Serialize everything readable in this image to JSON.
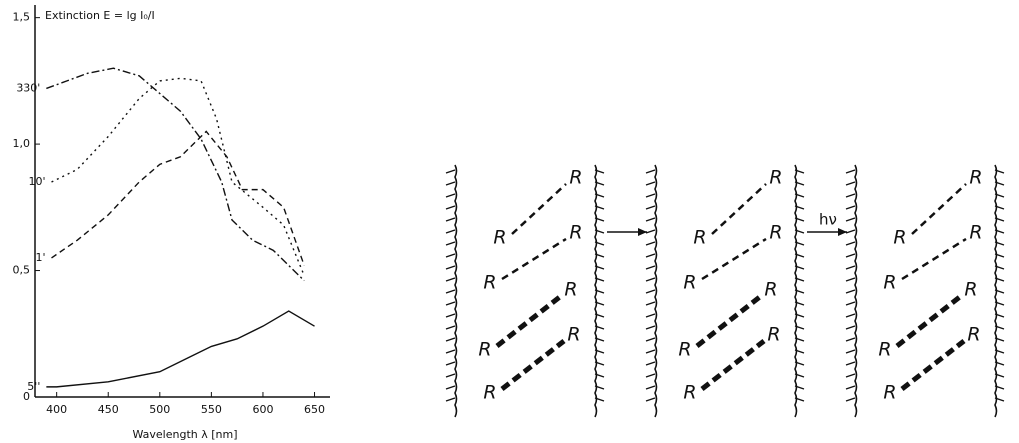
{
  "chart_data": {
    "type": "line",
    "ylabel": "Extinction E = lg I₀/I",
    "xlabel": "Wavelength λ [nm]",
    "xlim": [
      379,
      665
    ],
    "xticks": [
      400,
      450,
      500,
      550,
      600,
      650
    ],
    "ylim": [
      0,
      1.55
    ],
    "yticks": [
      0,
      {
        "value": 0.5,
        "label": "0,5"
      },
      {
        "value": 1.0,
        "label": "1,0"
      },
      {
        "value": 1.5,
        "label": "1,5"
      }
    ],
    "series": [
      {
        "name": "5''",
        "color": "#111111",
        "dash": "solid",
        "x": [
          390,
          400,
          450,
          500,
          530,
          550,
          575,
          600,
          625,
          650
        ],
        "values": [
          0.04,
          0.04,
          0.06,
          0.1,
          0.16,
          0.2,
          0.23,
          0.28,
          0.34,
          0.28
        ]
      },
      {
        "name": "1'",
        "color": "#111111",
        "dash": "dashed",
        "x": [
          395,
          420,
          450,
          480,
          500,
          520,
          545,
          565,
          580,
          600,
          620,
          640
        ],
        "values": [
          0.55,
          0.62,
          0.72,
          0.85,
          0.92,
          0.95,
          1.05,
          0.95,
          0.82,
          0.82,
          0.75,
          0.52
        ]
      },
      {
        "name": "10'",
        "color": "#111111",
        "dash": "dotted",
        "x": [
          395,
          420,
          450,
          480,
          500,
          520,
          540,
          555,
          570,
          600,
          620,
          640
        ],
        "values": [
          0.85,
          0.9,
          1.03,
          1.18,
          1.25,
          1.26,
          1.25,
          1.1,
          0.85,
          0.75,
          0.68,
          0.48
        ]
      },
      {
        "name": "330'",
        "color": "#111111",
        "dash": "dashdot",
        "x": [
          390,
          410,
          430,
          455,
          480,
          500,
          520,
          540,
          560,
          570,
          590,
          610,
          640
        ],
        "values": [
          1.22,
          1.25,
          1.28,
          1.3,
          1.27,
          1.2,
          1.13,
          1.02,
          0.85,
          0.7,
          0.62,
          0.58,
          0.46
        ]
      }
    ]
  },
  "diagram": {
    "arrow_label": "hν",
    "panels": [
      {
        "labels": [
          "R",
          "R",
          "R",
          "R",
          "R",
          "R",
          "R",
          "R"
        ]
      },
      {
        "labels": [
          "R",
          "R",
          "R",
          "R",
          "R",
          "R",
          "R",
          "R"
        ]
      },
      {
        "labels": [
          "R",
          "R",
          "R",
          "R",
          "R",
          "R",
          "R",
          "R"
        ]
      }
    ]
  }
}
